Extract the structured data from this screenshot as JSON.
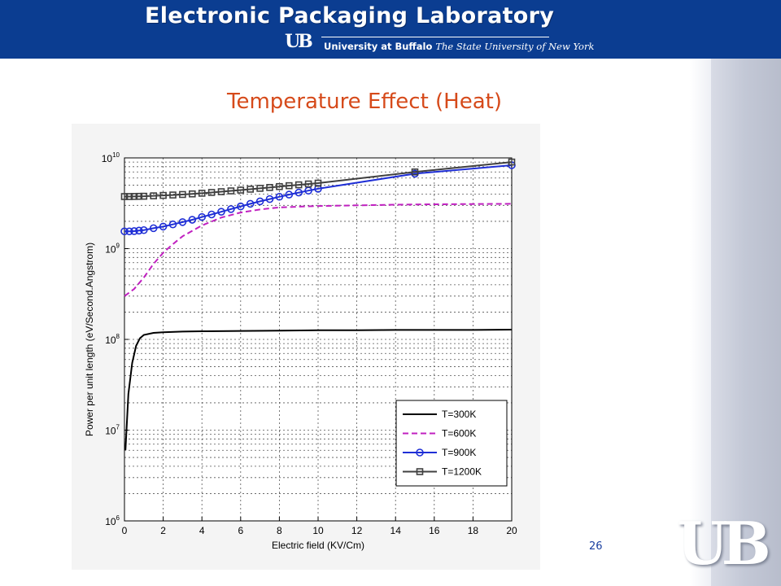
{
  "header": {
    "title": "Electronic Packaging Laboratory",
    "ub_mark": "UB",
    "university_bold": "University at Buffalo",
    "university_italic": "The State University of New York"
  },
  "slide": {
    "title": "Temperature Effect (Heat)",
    "page_number": "26",
    "logo_text": "UB"
  },
  "colors": {
    "header_bg": "#0b3d91",
    "title_orange": "#d64a1a",
    "series_300": "#000000",
    "series_600": "#c020c0",
    "series_900": "#1f2fd6",
    "series_1200": "#404040"
  },
  "chart_data": {
    "type": "line",
    "title": "",
    "xlabel": "Electric field (KV/Cm)",
    "ylabel": "Power per unit length (eV/Second.Angstrom)",
    "xlim": [
      0,
      20
    ],
    "ylim": [
      1000000,
      10000000000
    ],
    "yscale": "log",
    "grid": true,
    "legend_position": "bottom-right",
    "x_ticks": [
      "0",
      "2",
      "4",
      "6",
      "8",
      "10",
      "12",
      "14",
      "16",
      "18",
      "20"
    ],
    "y_ticks": [
      {
        "base": "10",
        "exp": "6"
      },
      {
        "base": "10",
        "exp": "7"
      },
      {
        "base": "10",
        "exp": "8"
      },
      {
        "base": "10",
        "exp": "9"
      },
      {
        "base": "10",
        "exp": "10"
      }
    ],
    "series": [
      {
        "name": "T=300K",
        "style": "solid",
        "marker": "none",
        "points": [
          [
            0.05,
            6000000
          ],
          [
            0.2,
            25000000
          ],
          [
            0.4,
            55000000
          ],
          [
            0.6,
            85000000
          ],
          [
            0.8,
            103000000
          ],
          [
            1.0,
            112000000
          ],
          [
            1.5,
            118000000
          ],
          [
            2,
            120000000
          ],
          [
            3,
            122000000
          ],
          [
            4,
            123000000
          ],
          [
            6,
            124000000
          ],
          [
            8,
            125000000
          ],
          [
            10,
            126000000
          ],
          [
            12,
            126000000
          ],
          [
            14,
            127000000
          ],
          [
            16,
            127000000
          ],
          [
            18,
            127000000
          ],
          [
            20,
            128000000
          ]
        ]
      },
      {
        "name": "T=600K",
        "style": "dashed",
        "marker": "none",
        "points": [
          [
            0,
            300000000
          ],
          [
            0.5,
            360000000
          ],
          [
            1,
            480000000
          ],
          [
            1.5,
            680000000
          ],
          [
            2,
            900000000
          ],
          [
            2.5,
            1120000000
          ],
          [
            3,
            1370000000
          ],
          [
            4,
            1800000000
          ],
          [
            5,
            2200000000
          ],
          [
            6,
            2500000000
          ],
          [
            7,
            2700000000
          ],
          [
            8,
            2850000000
          ],
          [
            10,
            2950000000
          ],
          [
            12,
            3000000000
          ],
          [
            14,
            3050000000
          ],
          [
            16,
            3080000000
          ],
          [
            18,
            3100000000
          ],
          [
            20,
            3120000000
          ]
        ]
      },
      {
        "name": "T=900K",
        "style": "solid",
        "marker": "circle",
        "points": [
          [
            0,
            1550000000
          ],
          [
            0.25,
            1550000000
          ],
          [
            0.5,
            1560000000
          ],
          [
            0.75,
            1580000000
          ],
          [
            1,
            1600000000
          ],
          [
            1.5,
            1680000000
          ],
          [
            2,
            1750000000
          ],
          [
            2.5,
            1850000000
          ],
          [
            3,
            1960000000
          ],
          [
            3.5,
            2080000000
          ],
          [
            4,
            2230000000
          ],
          [
            4.5,
            2380000000
          ],
          [
            5,
            2550000000
          ],
          [
            5.5,
            2730000000
          ],
          [
            6,
            2920000000
          ],
          [
            6.5,
            3120000000
          ],
          [
            7,
            3320000000
          ],
          [
            7.5,
            3520000000
          ],
          [
            8,
            3730000000
          ],
          [
            8.5,
            3940000000
          ],
          [
            9,
            4150000000
          ],
          [
            9.5,
            4360000000
          ],
          [
            10,
            4570000000
          ],
          [
            15,
            6700000000
          ],
          [
            20,
            8300000000
          ]
        ]
      },
      {
        "name": "T=1200K",
        "style": "solid",
        "marker": "square",
        "points": [
          [
            0,
            3750000000
          ],
          [
            0.25,
            3750000000
          ],
          [
            0.5,
            3760000000
          ],
          [
            0.75,
            3770000000
          ],
          [
            1,
            3780000000
          ],
          [
            1.5,
            3820000000
          ],
          [
            2,
            3860000000
          ],
          [
            2.5,
            3900000000
          ],
          [
            3,
            3950000000
          ],
          [
            3.5,
            4010000000
          ],
          [
            4,
            4080000000
          ],
          [
            4.5,
            4160000000
          ],
          [
            5,
            4240000000
          ],
          [
            5.5,
            4330000000
          ],
          [
            6,
            4420000000
          ],
          [
            6.5,
            4520000000
          ],
          [
            7,
            4620000000
          ],
          [
            7.5,
            4720000000
          ],
          [
            8,
            4830000000
          ],
          [
            8.5,
            4940000000
          ],
          [
            9,
            5050000000
          ],
          [
            9.5,
            5160000000
          ],
          [
            10,
            5270000000
          ],
          [
            15,
            7000000000
          ],
          [
            20,
            9000000000
          ]
        ]
      }
    ]
  }
}
